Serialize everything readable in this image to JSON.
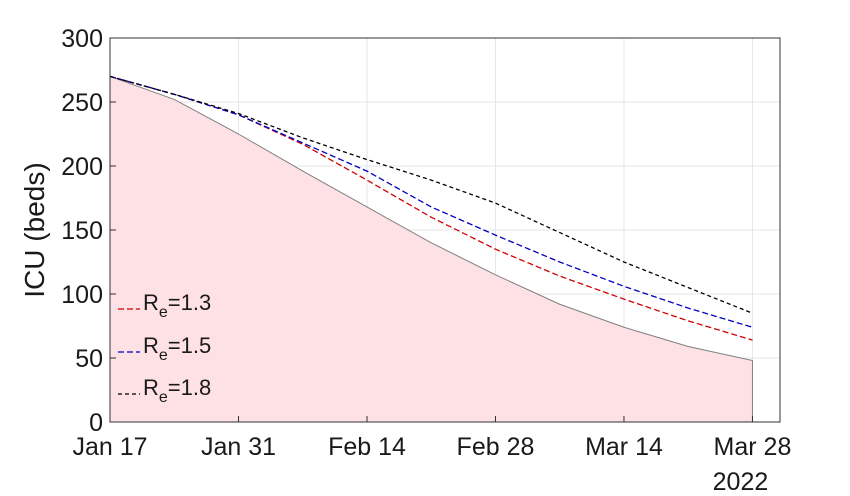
{
  "chart_data": {
    "type": "line",
    "title": "",
    "xlabel": "",
    "ylabel": "ICU (beds)",
    "x_ticks": [
      "Jan 17",
      "Jan 31",
      "Feb 14",
      "Feb 28",
      "Mar 14",
      "Mar 28"
    ],
    "x_year_label": "2022",
    "xlim": [
      "2022-01-17",
      "2022-03-31"
    ],
    "ylim": [
      0,
      300
    ],
    "y_ticks": [
      0,
      50,
      100,
      150,
      200,
      250,
      300
    ],
    "grid": true,
    "legend_position": "bottom-left",
    "shaded_area": {
      "color": "#fde1e4",
      "edge_color": "#808080",
      "x": [
        "2022-01-17",
        "2022-01-24",
        "2022-01-31",
        "2022-02-07",
        "2022-02-14",
        "2022-02-21",
        "2022-02-28",
        "2022-03-07",
        "2022-03-14",
        "2022-03-21",
        "2022-03-28"
      ],
      "values": [
        270,
        252,
        225,
        196,
        168,
        140,
        115,
        92,
        74,
        59,
        48
      ]
    },
    "series": [
      {
        "label_main": "R",
        "label_sub": "e",
        "label_value": "=1.3",
        "color": "#d00000",
        "dash": "6,3",
        "x": [
          "2022-01-17",
          "2022-01-24",
          "2022-01-31",
          "2022-02-07",
          "2022-02-14",
          "2022-02-21",
          "2022-02-28",
          "2022-03-07",
          "2022-03-14",
          "2022-03-21",
          "2022-03-28"
        ],
        "values": [
          270,
          256,
          240,
          217,
          189,
          160,
          135,
          114,
          96,
          79,
          64
        ]
      },
      {
        "label_main": "R",
        "label_sub": "e",
        "label_value": "=1.5",
        "color": "#0000c0",
        "dash": "6,3",
        "x": [
          "2022-01-17",
          "2022-01-24",
          "2022-01-31",
          "2022-02-07",
          "2022-02-14",
          "2022-02-21",
          "2022-02-28",
          "2022-03-07",
          "2022-03-14",
          "2022-03-21",
          "2022-03-28"
        ],
        "values": [
          270,
          256,
          240,
          218,
          196,
          168,
          146,
          125,
          106,
          89,
          74
        ]
      },
      {
        "label_main": "R",
        "label_sub": "e",
        "label_value": "=1.8",
        "color": "#000000",
        "dash": "4,3",
        "x": [
          "2022-01-17",
          "2022-01-24",
          "2022-01-31",
          "2022-02-07",
          "2022-02-14",
          "2022-02-21",
          "2022-02-28",
          "2022-03-07",
          "2022-03-14",
          "2022-03-21",
          "2022-03-28"
        ],
        "values": [
          270,
          256,
          241,
          222,
          205,
          189,
          171,
          148,
          125,
          105,
          85
        ]
      }
    ]
  }
}
